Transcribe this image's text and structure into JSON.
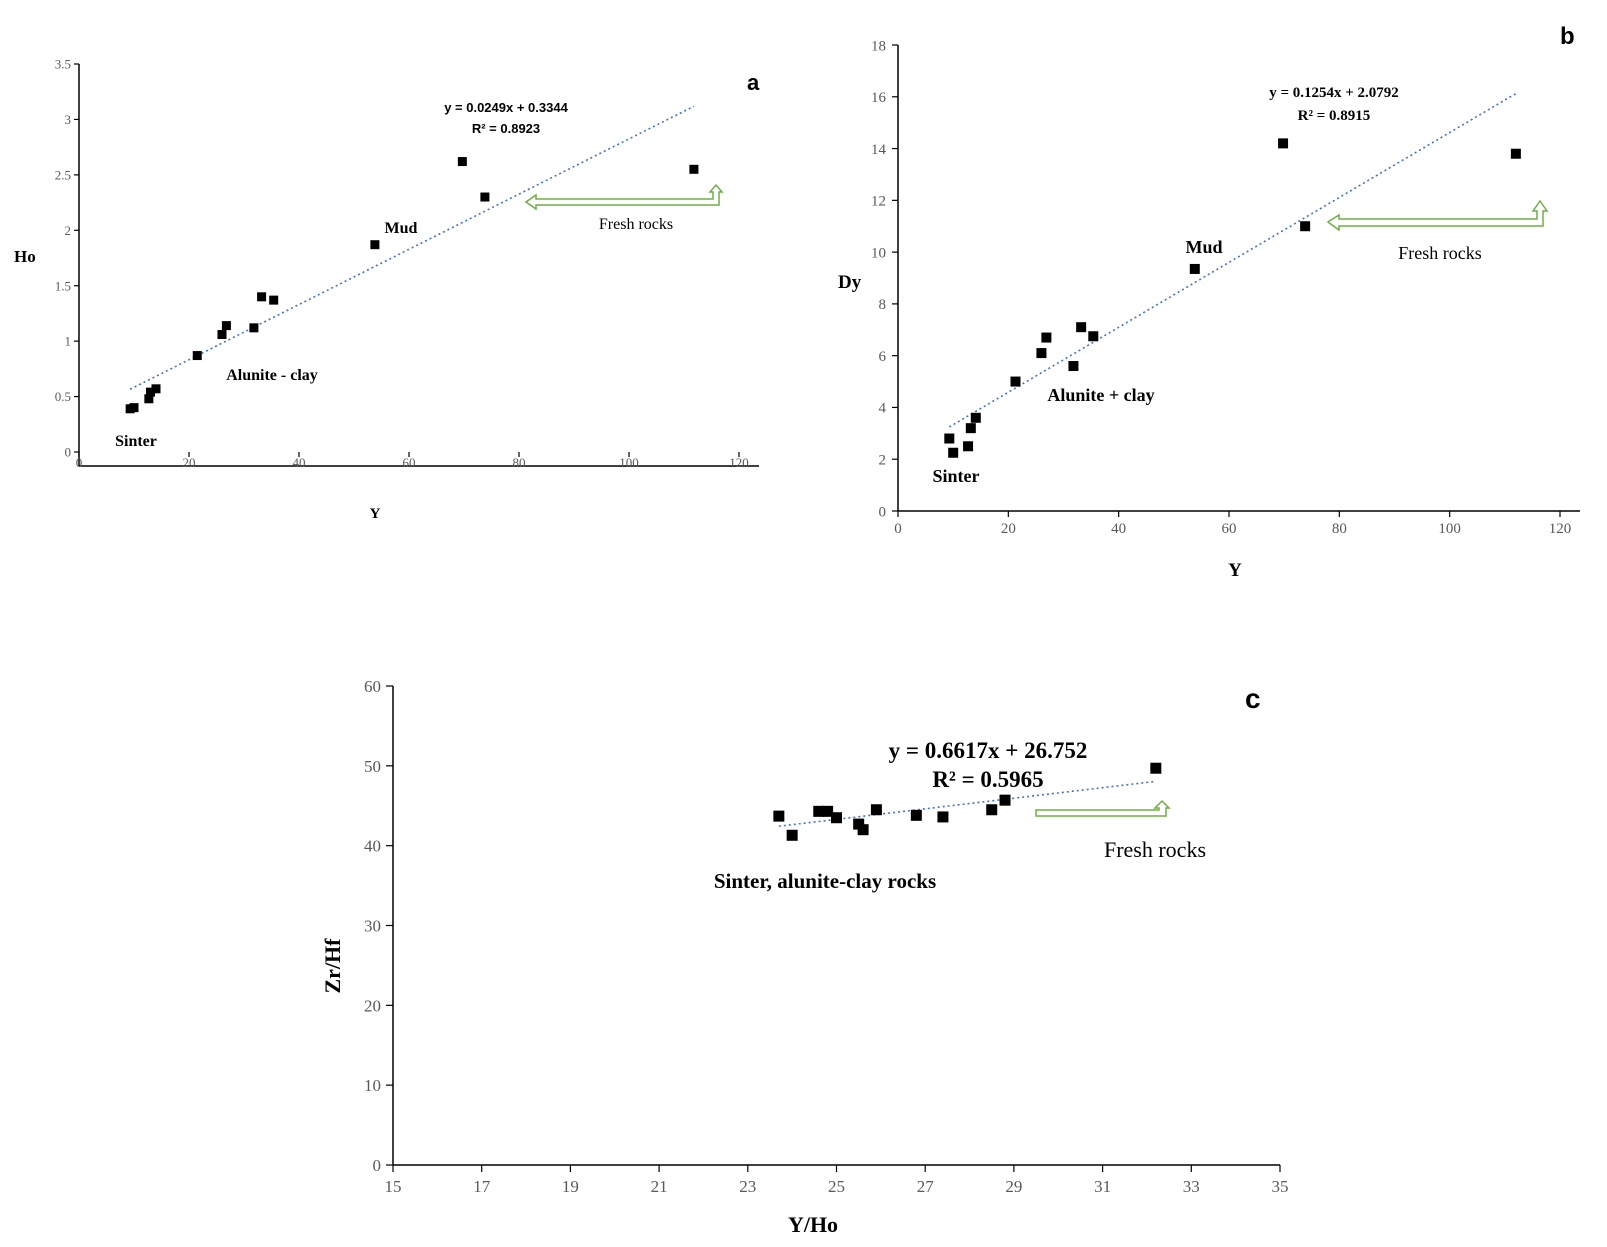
{
  "chart_data": [
    {
      "panel": "a",
      "type": "scatter",
      "xlabel": "Y",
      "ylabel": "Ho",
      "xlim": [
        0,
        120
      ],
      "ylim": [
        0,
        3.5
      ],
      "xticks": [
        "0",
        "20",
        "40",
        "60",
        "80",
        "100",
        "120"
      ],
      "yticks": [
        "0",
        "0.5",
        "1",
        "1.5",
        "2",
        "2.5",
        "3",
        "3.5"
      ],
      "points": [
        {
          "x": 9.3,
          "y": 0.39
        },
        {
          "x": 10.0,
          "y": 0.4
        },
        {
          "x": 12.7,
          "y": 0.48
        },
        {
          "x": 13.0,
          "y": 0.54
        },
        {
          "x": 14.0,
          "y": 0.57
        },
        {
          "x": 21.5,
          "y": 0.87
        },
        {
          "x": 26.0,
          "y": 1.06
        },
        {
          "x": 26.8,
          "y": 1.14
        },
        {
          "x": 31.8,
          "y": 1.12
        },
        {
          "x": 33.2,
          "y": 1.4
        },
        {
          "x": 35.4,
          "y": 1.37
        },
        {
          "x": 53.8,
          "y": 1.87
        },
        {
          "x": 69.7,
          "y": 2.62
        },
        {
          "x": 73.8,
          "y": 2.3
        },
        {
          "x": 111.8,
          "y": 2.55
        }
      ],
      "trendline": {
        "slope": 0.0249,
        "intercept": 0.3344,
        "x_range": [
          9.3,
          111.8
        ]
      },
      "equation": "y = 0.0249x + 0.3344",
      "r2": "R² = 0.8923",
      "annotations": {
        "sinter": "Sinter",
        "alunite": "Alunite - clay",
        "mud": "Mud",
        "fresh": "Fresh rocks"
      }
    },
    {
      "panel": "b",
      "type": "scatter",
      "xlabel": "Y",
      "ylabel": "Dy",
      "xlim": [
        0,
        120
      ],
      "ylim": [
        0,
        18
      ],
      "xticks": [
        "0",
        "20",
        "40",
        "60",
        "80",
        "100",
        "120"
      ],
      "yticks": [
        "0",
        "2",
        "4",
        "6",
        "8",
        "10",
        "12",
        "14",
        "16",
        "18"
      ],
      "points": [
        {
          "x": 9.3,
          "y": 2.8
        },
        {
          "x": 10.0,
          "y": 2.25
        },
        {
          "x": 12.7,
          "y": 2.5
        },
        {
          "x": 13.2,
          "y": 3.2
        },
        {
          "x": 14.1,
          "y": 3.6
        },
        {
          "x": 21.3,
          "y": 5.0
        },
        {
          "x": 26.0,
          "y": 6.1
        },
        {
          "x": 26.9,
          "y": 6.7
        },
        {
          "x": 31.8,
          "y": 5.6
        },
        {
          "x": 33.2,
          "y": 7.1
        },
        {
          "x": 35.4,
          "y": 6.75
        },
        {
          "x": 53.8,
          "y": 9.35
        },
        {
          "x": 69.8,
          "y": 14.2
        },
        {
          "x": 73.8,
          "y": 11.0
        },
        {
          "x": 112.0,
          "y": 13.8
        }
      ],
      "trendline": {
        "slope": 0.1254,
        "intercept": 2.0792,
        "x_range": [
          9.3,
          112.0
        ]
      },
      "equation": "y = 0.1254x + 2.0792",
      "r2": "R² = 0.8915",
      "annotations": {
        "sinter": "Sinter",
        "alunite": "Alunite + clay",
        "mud": "Mud",
        "fresh": "Fresh rocks"
      }
    },
    {
      "panel": "c",
      "type": "scatter",
      "xlabel": "Y/Ho",
      "ylabel": "Zr/Hf",
      "xlim": [
        15,
        35
      ],
      "ylim": [
        0,
        60
      ],
      "xticks": [
        "15",
        "17",
        "19",
        "21",
        "23",
        "25",
        "27",
        "29",
        "31",
        "33",
        "35"
      ],
      "yticks": [
        "0",
        "10",
        "20",
        "30",
        "40",
        "50",
        "60"
      ],
      "points": [
        {
          "x": 23.7,
          "y": 43.7
        },
        {
          "x": 24.0,
          "y": 41.3
        },
        {
          "x": 24.6,
          "y": 44.3
        },
        {
          "x": 24.8,
          "y": 44.3
        },
        {
          "x": 25.0,
          "y": 43.5
        },
        {
          "x": 25.5,
          "y": 42.7
        },
        {
          "x": 25.6,
          "y": 42.0
        },
        {
          "x": 25.9,
          "y": 44.5
        },
        {
          "x": 26.8,
          "y": 43.8
        },
        {
          "x": 27.4,
          "y": 43.6
        },
        {
          "x": 28.5,
          "y": 44.5
        },
        {
          "x": 28.8,
          "y": 45.7
        },
        {
          "x": 32.2,
          "y": 49.7
        }
      ],
      "trendline": {
        "slope": 0.6617,
        "intercept": 26.752,
        "x_range": [
          23.7,
          32.2
        ]
      },
      "equation": "y = 0.6617x + 26.752",
      "r2": "R² = 0.5965",
      "annotations": {
        "label": "Sinter, alunite-clay rocks",
        "fresh": "Fresh rocks"
      }
    }
  ]
}
